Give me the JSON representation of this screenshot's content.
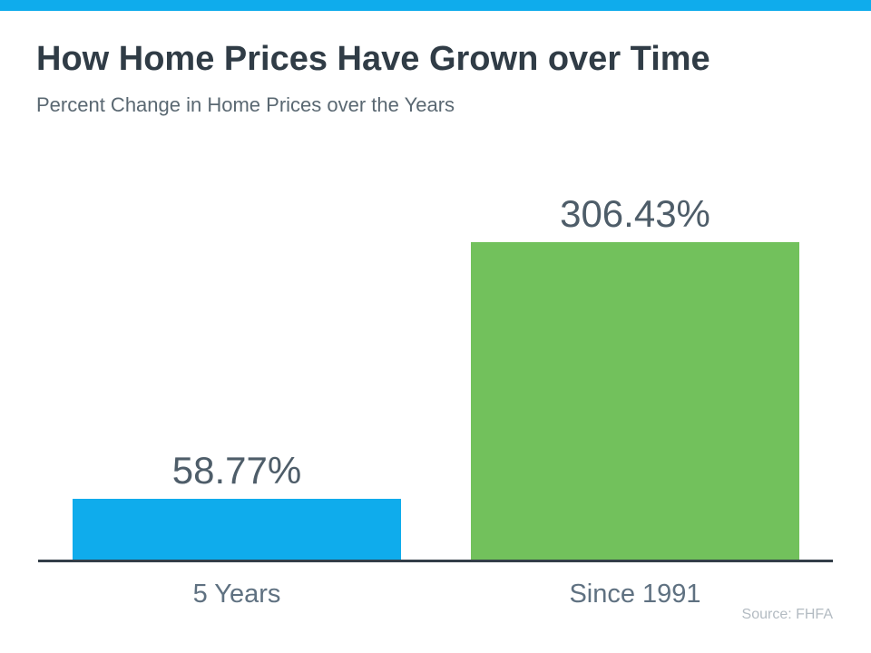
{
  "page": {
    "title": "How Home Prices Have Grown over Time",
    "subtitle": "Percent Change in Home Prices over the Years",
    "source_note": "Source: FHFA"
  },
  "colors": {
    "accent_bar": "#0FACEC",
    "bar_blue": "#0FACEC",
    "bar_green": "#72C15C",
    "axis_line": "#333E48",
    "title_text": "#303C46",
    "subtitle_text": "#5A6872",
    "value_text": "#4E5D69",
    "category_text": "#5F7181",
    "source_text": "#B3BBC2"
  },
  "chart_data": {
    "type": "bar",
    "title": "How Home Prices Have Grown over Time",
    "subtitle": "Percent Change in Home Prices over the Years",
    "categories": [
      "5 Years",
      "Since 1991"
    ],
    "values": [
      58.77,
      306.43
    ],
    "value_labels": [
      "58.77%",
      "306.43%"
    ],
    "bar_colors": [
      "#0FACEC",
      "#72C15C"
    ],
    "xlabel": "",
    "ylabel": "",
    "ylim": [
      0,
      306.43
    ],
    "grid": false,
    "legend_position": "none",
    "source": "Source: FHFA"
  }
}
